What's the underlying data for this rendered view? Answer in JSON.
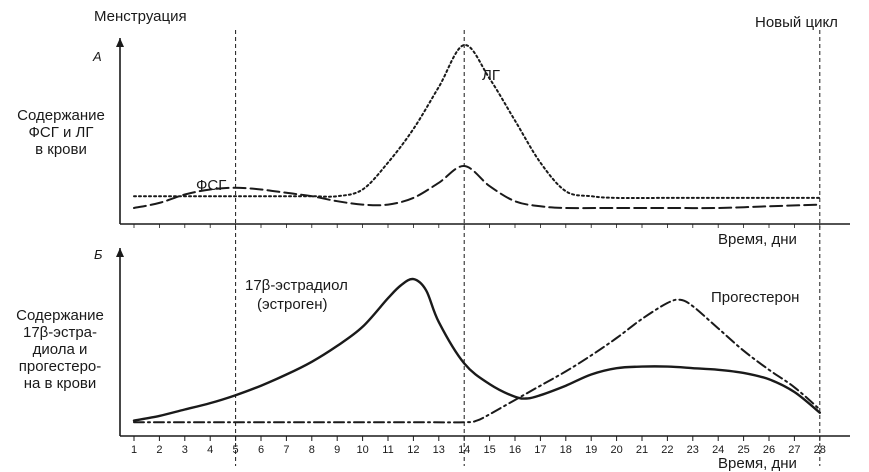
{
  "chart_data": [
    {
      "panel": "А",
      "type": "line",
      "ylabel": [
        "Содержание",
        "ФСГ и ЛГ",
        "в крови"
      ],
      "xlabel": "Время, дни",
      "xlim": [
        1,
        28
      ],
      "top_markers": {
        "start": "Менструация",
        "end": "Новый цикл"
      },
      "series": [
        {
          "name": "ЛГ",
          "style": "dotted",
          "x": [
            1,
            2,
            3,
            4,
            5,
            6,
            7,
            8,
            9,
            10,
            11,
            12,
            13,
            14,
            15,
            16,
            17,
            18,
            19,
            20,
            22,
            24,
            26,
            28
          ],
          "y": [
            10,
            10,
            10,
            10,
            10,
            10,
            10,
            10,
            10,
            14,
            30,
            50,
            75,
            100,
            80,
            55,
            30,
            13,
            10,
            9,
            9,
            9,
            9,
            9
          ]
        },
        {
          "name": "ФСГ",
          "style": "dashed",
          "x": [
            1,
            2,
            3,
            4,
            5,
            6,
            7,
            8,
            9,
            10,
            11,
            12,
            13,
            14,
            15,
            16,
            17,
            18,
            20,
            22,
            24,
            26,
            28
          ],
          "y": [
            3,
            6,
            11,
            14,
            15,
            14,
            12,
            10,
            7,
            5,
            5,
            9,
            18,
            28,
            16,
            7,
            4,
            3,
            3,
            3,
            3,
            4,
            5
          ]
        }
      ]
    },
    {
      "panel": "Б",
      "type": "line",
      "ylabel": [
        "Содержание",
        "17β-эстра-",
        "диола и",
        "прогестеро-",
        "на в крови"
      ],
      "xlabel": "Время, дни",
      "xlim": [
        1,
        28
      ],
      "categories": [
        "1",
        "2",
        "3",
        "4",
        "5",
        "6",
        "7",
        "8",
        "9",
        "10",
        "11",
        "12",
        "13",
        "14",
        "15",
        "16",
        "17",
        "18",
        "19",
        "20",
        "21",
        "22",
        "23",
        "24",
        "25",
        "26",
        "27",
        "28"
      ],
      "series": [
        {
          "name": "17β-эстрадиол (эстроген)",
          "style": "solid",
          "x": [
            1,
            2,
            3,
            4,
            5,
            6,
            7,
            8,
            9,
            10,
            11,
            11.5,
            12,
            12.5,
            13,
            14,
            15,
            16,
            16.5,
            17,
            18,
            19,
            20,
            21,
            22,
            23,
            24,
            25,
            26,
            27,
            28
          ],
          "y": [
            4,
            7,
            11,
            15,
            20,
            26,
            33,
            41,
            51,
            63,
            81,
            89,
            93,
            86,
            66,
            40,
            27,
            19,
            18,
            20,
            26,
            33,
            37,
            38,
            38,
            37,
            36,
            34,
            30,
            22,
            9
          ]
        },
        {
          "name": "Прогестерон",
          "style": "dash-dot",
          "x": [
            1,
            2,
            4,
            6,
            8,
            10,
            12,
            14,
            14.5,
            15,
            16,
            17,
            18,
            19,
            20,
            21,
            22,
            22.5,
            23,
            24,
            25,
            26,
            27,
            28
          ],
          "y": [
            3,
            3,
            3,
            3,
            3,
            3,
            3,
            3,
            4,
            8,
            17,
            26,
            35,
            45,
            56,
            68,
            78,
            80,
            76,
            62,
            48,
            36,
            25,
            11
          ]
        }
      ],
      "annotations": [
        "17β-эстрадиол",
        "(эстроген)",
        "Прогестерон"
      ]
    }
  ],
  "colors": {
    "ink": "#1a1a1a",
    "background": "#ffffff"
  }
}
